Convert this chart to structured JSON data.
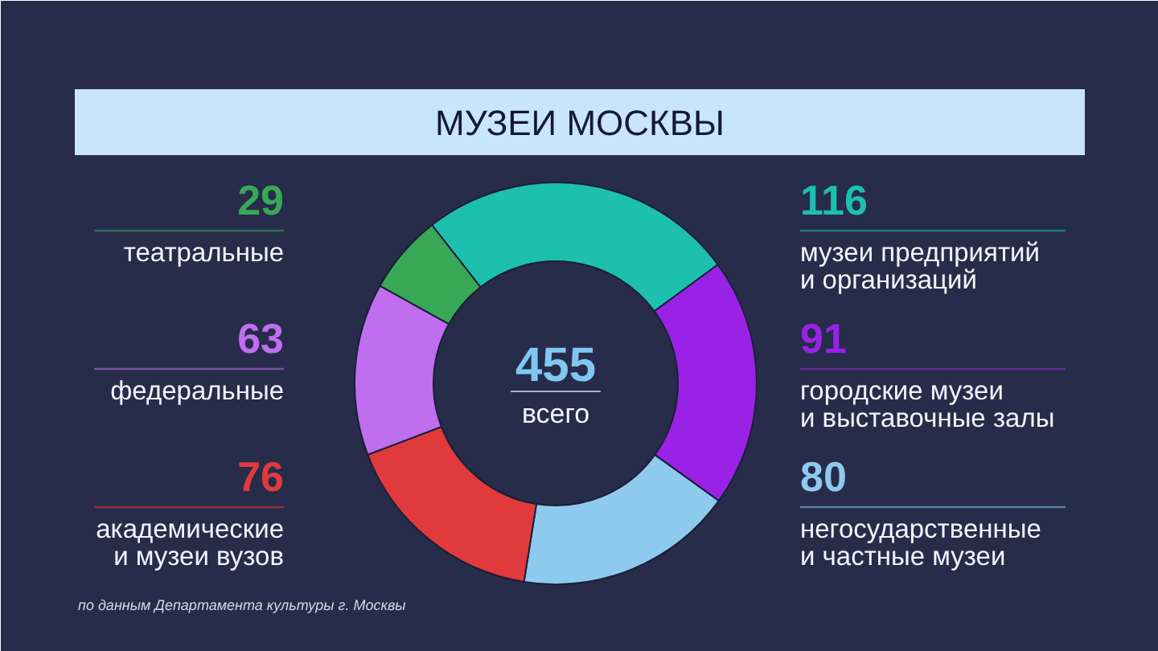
{
  "chart_data": {
    "type": "donut",
    "title": "МУЗЕИ МОСКВЫ",
    "categories": [
      "музеи предприятий\nи организаций",
      "городские музеи\nи выставочные залы",
      "негосударственные\nи частные музеи",
      "академические\nи музеи вузов",
      "федеральные",
      "театральные"
    ],
    "values": [
      116,
      91,
      80,
      76,
      63,
      29
    ],
    "colors": [
      "#1dbfae",
      "#9a22e6",
      "#8ecaee",
      "#e03a3c",
      "#bf6ef0",
      "#38a857"
    ],
    "data_labels": true,
    "annotations": [
      "455",
      "всего",
      "по данным Департамента культуры г. Москвы"
    ]
  }
}
